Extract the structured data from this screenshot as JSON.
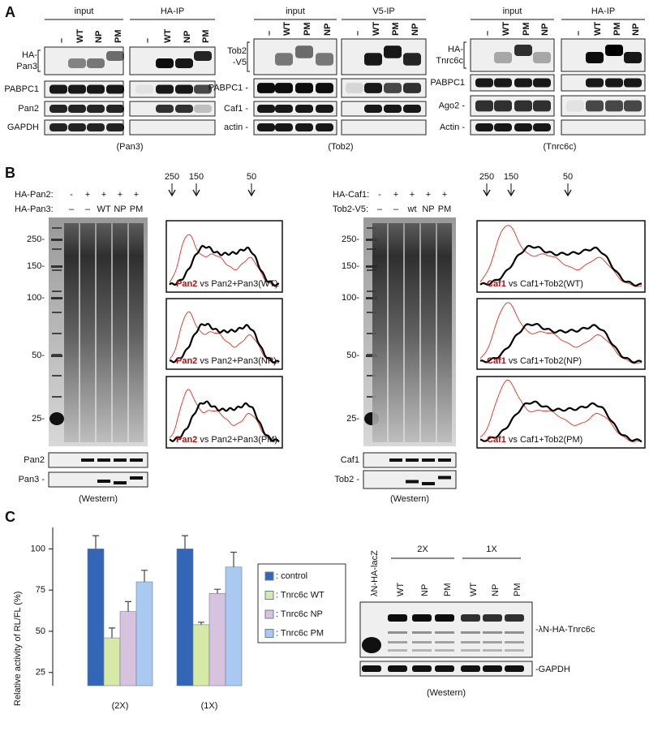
{
  "panel_A": {
    "label": "A",
    "blots": [
      {
        "headers": [
          "input",
          "HA-IP"
        ],
        "lanes": [
          "–",
          "WT",
          "NP",
          "PM",
          "–",
          "WT",
          "NP",
          "PM"
        ],
        "rows": [
          [
            "HA-",
            "Pan3"
          ],
          "PABPC1",
          "Pan2",
          "GAPDH"
        ],
        "caption": "(Pan3)"
      },
      {
        "headers": [
          "input",
          "V5-IP"
        ],
        "lanes": [
          "–",
          "WT",
          "PM",
          "NP",
          "–",
          "WT",
          "PM",
          "NP"
        ],
        "rows": [
          [
            "Tob2",
            "-V5"
          ],
          "PABPC1 -",
          "Caf1 -",
          "actin -"
        ],
        "caption": "(Tob2)"
      },
      {
        "headers": [
          "input",
          "HA-IP"
        ],
        "lanes": [
          "–",
          "WT",
          "PM",
          "NP",
          "–",
          "WT",
          "PM",
          "NP"
        ],
        "rows": [
          [
            "HA-",
            "Tnrc6c"
          ],
          "PABPC1",
          "Ago2 -",
          "Actin -"
        ],
        "caption": "(Tnrc6c)"
      }
    ]
  },
  "panel_B": {
    "label": "B",
    "experiments": [
      {
        "rows": [
          {
            "name": "HA-Pan2:",
            "lanes": [
              "-",
              "+",
              "+",
              "+",
              "+"
            ]
          },
          {
            "name": "HA-Pan3:",
            "lanes": [
              "–",
              "–",
              "WT",
              "NP",
              "PM"
            ]
          }
        ],
        "markers": [
          "250-",
          "150-",
          "100-",
          "50-",
          "25-"
        ],
        "arrows": [
          "250",
          "150",
          "50"
        ],
        "profiles": [
          {
            "highlight": "Pan2",
            "text": " vs Pan2+Pan3(WT)"
          },
          {
            "highlight": "Pan2",
            "text": " vs Pan2+Pan3(NP)"
          },
          {
            "highlight": "Pan2",
            "text": " vs Pan2+Pan3(PM)"
          }
        ],
        "western": {
          "rows": [
            "Pan2",
            "Pan3 -"
          ],
          "caption": "(Western)"
        }
      },
      {
        "rows": [
          {
            "name": "HA-Caf1:",
            "lanes": [
              "-",
              "+",
              "+",
              "+",
              "+"
            ]
          },
          {
            "name": "Tob2-V5:",
            "lanes": [
              "–",
              "–",
              "wt",
              "NP",
              "PM"
            ]
          }
        ],
        "markers": [
          "250-",
          "150-",
          "100-",
          "50-",
          "25-"
        ],
        "arrows": [
          "250",
          "150",
          "50"
        ],
        "profiles": [
          {
            "highlight": "Caf1",
            "text": " vs Caf1+Tob2(WT)"
          },
          {
            "highlight": "Caf1",
            "text": " vs Caf1+Tob2(NP)"
          },
          {
            "highlight": "Caf1",
            "text": " vs Caf1+Tob2(PM)"
          }
        ],
        "western": {
          "rows": [
            "Caf1",
            "Tob2 -"
          ],
          "caption": "(Western)"
        }
      }
    ]
  },
  "panel_C": {
    "label": "C",
    "blot": {
      "control_lane": "λN-HA-lacZ",
      "groups": [
        "2X",
        "1X"
      ],
      "lanes": [
        "WT",
        "NP",
        "PM",
        "WT",
        "NP",
        "PM"
      ],
      "rows": [
        "-λN-HA-Tnrc6c",
        "-GAPDH"
      ],
      "caption": "(Western)"
    }
  },
  "chart_data": {
    "type": "bar",
    "ylabel": "Relative activity of RL/FL (%)",
    "categories": [
      "(2X)",
      "(1X)"
    ],
    "series": [
      {
        "name": ": control",
        "color": "#3466b8",
        "values": [
          100,
          100
        ],
        "errors": [
          8,
          8
        ]
      },
      {
        "name": ": Tnrc6c WT",
        "color": "#d6e9a6",
        "values": [
          46,
          54
        ],
        "errors": [
          6,
          1.5
        ]
      },
      {
        "name": ": Tnrc6c NP",
        "color": "#d8c3df",
        "values": [
          62,
          73
        ],
        "errors": [
          6,
          2.5
        ]
      },
      {
        "name": ": Tnrc6c PM",
        "color": "#a9c9f0",
        "values": [
          80,
          89
        ],
        "errors": [
          7,
          9
        ]
      }
    ],
    "ylim": [
      17,
      113
    ],
    "yticks": [
      25,
      50,
      75,
      100
    ]
  }
}
